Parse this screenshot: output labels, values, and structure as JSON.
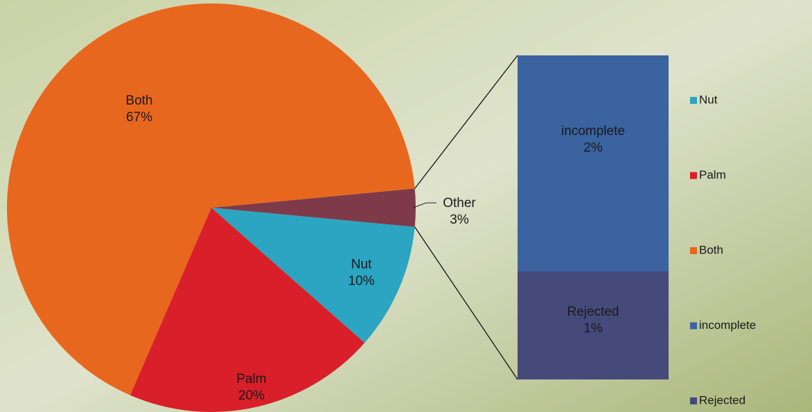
{
  "chart_data": {
    "type": "pie",
    "categories": [
      "Nut",
      "Palm",
      "Both"
    ],
    "values": [
      10,
      20,
      67
    ],
    "value_labels": [
      "10%",
      "20%",
      "67%"
    ],
    "colors": [
      "#2ba5c1",
      "#d91f2a",
      "#e8671e"
    ],
    "other": {
      "label": "Other",
      "value": 3,
      "value_label": "3%",
      "color": "#7f3a4a"
    },
    "breakdown": {
      "categories": [
        "incomplete",
        "Rejected"
      ],
      "values": [
        2,
        1
      ],
      "value_labels": [
        "2%",
        "1%"
      ],
      "colors": [
        "#3a63a0",
        "#464a7a"
      ]
    },
    "legend": "right"
  }
}
